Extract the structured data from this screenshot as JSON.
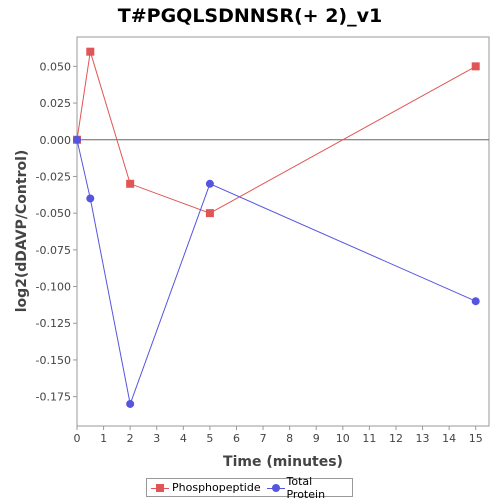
{
  "chart_data": {
    "type": "line",
    "title": "T#PGQLSDNNSR(+ 2)_v1",
    "xlabel": "Time (minutes)",
    "ylabel": "log2(dDAVP/Control)",
    "xlim": [
      0,
      15.5
    ],
    "ylim": [
      -0.195,
      0.07
    ],
    "x_ticks": [
      0,
      1,
      2,
      3,
      4,
      5,
      6,
      7,
      8,
      9,
      10,
      11,
      12,
      13,
      14,
      15
    ],
    "y_ticks": [
      0.05,
      0.025,
      0.0,
      -0.025,
      -0.05,
      -0.075,
      -0.1,
      -0.125,
      -0.15,
      -0.175
    ],
    "y_tick_labels": [
      "0.050",
      "0.025",
      "0.000",
      "-0.025",
      "-0.050",
      "-0.075",
      "-0.100",
      "-0.125",
      "-0.150",
      "-0.175"
    ],
    "grid": false,
    "reference_line_y": 0,
    "legend_position": "bottom",
    "series": [
      {
        "name": "Phosphopeptide",
        "color": "#e05555",
        "marker": "square",
        "x": [
          0,
          0.5,
          2,
          5,
          15
        ],
        "y": [
          0.0,
          0.06,
          -0.03,
          -0.05,
          0.05
        ]
      },
      {
        "name": "Total Protein",
        "color": "#5555e0",
        "marker": "circle",
        "x": [
          0,
          0.5,
          2,
          5,
          15
        ],
        "y": [
          0.0,
          -0.04,
          -0.18,
          -0.03,
          -0.11
        ]
      }
    ]
  }
}
